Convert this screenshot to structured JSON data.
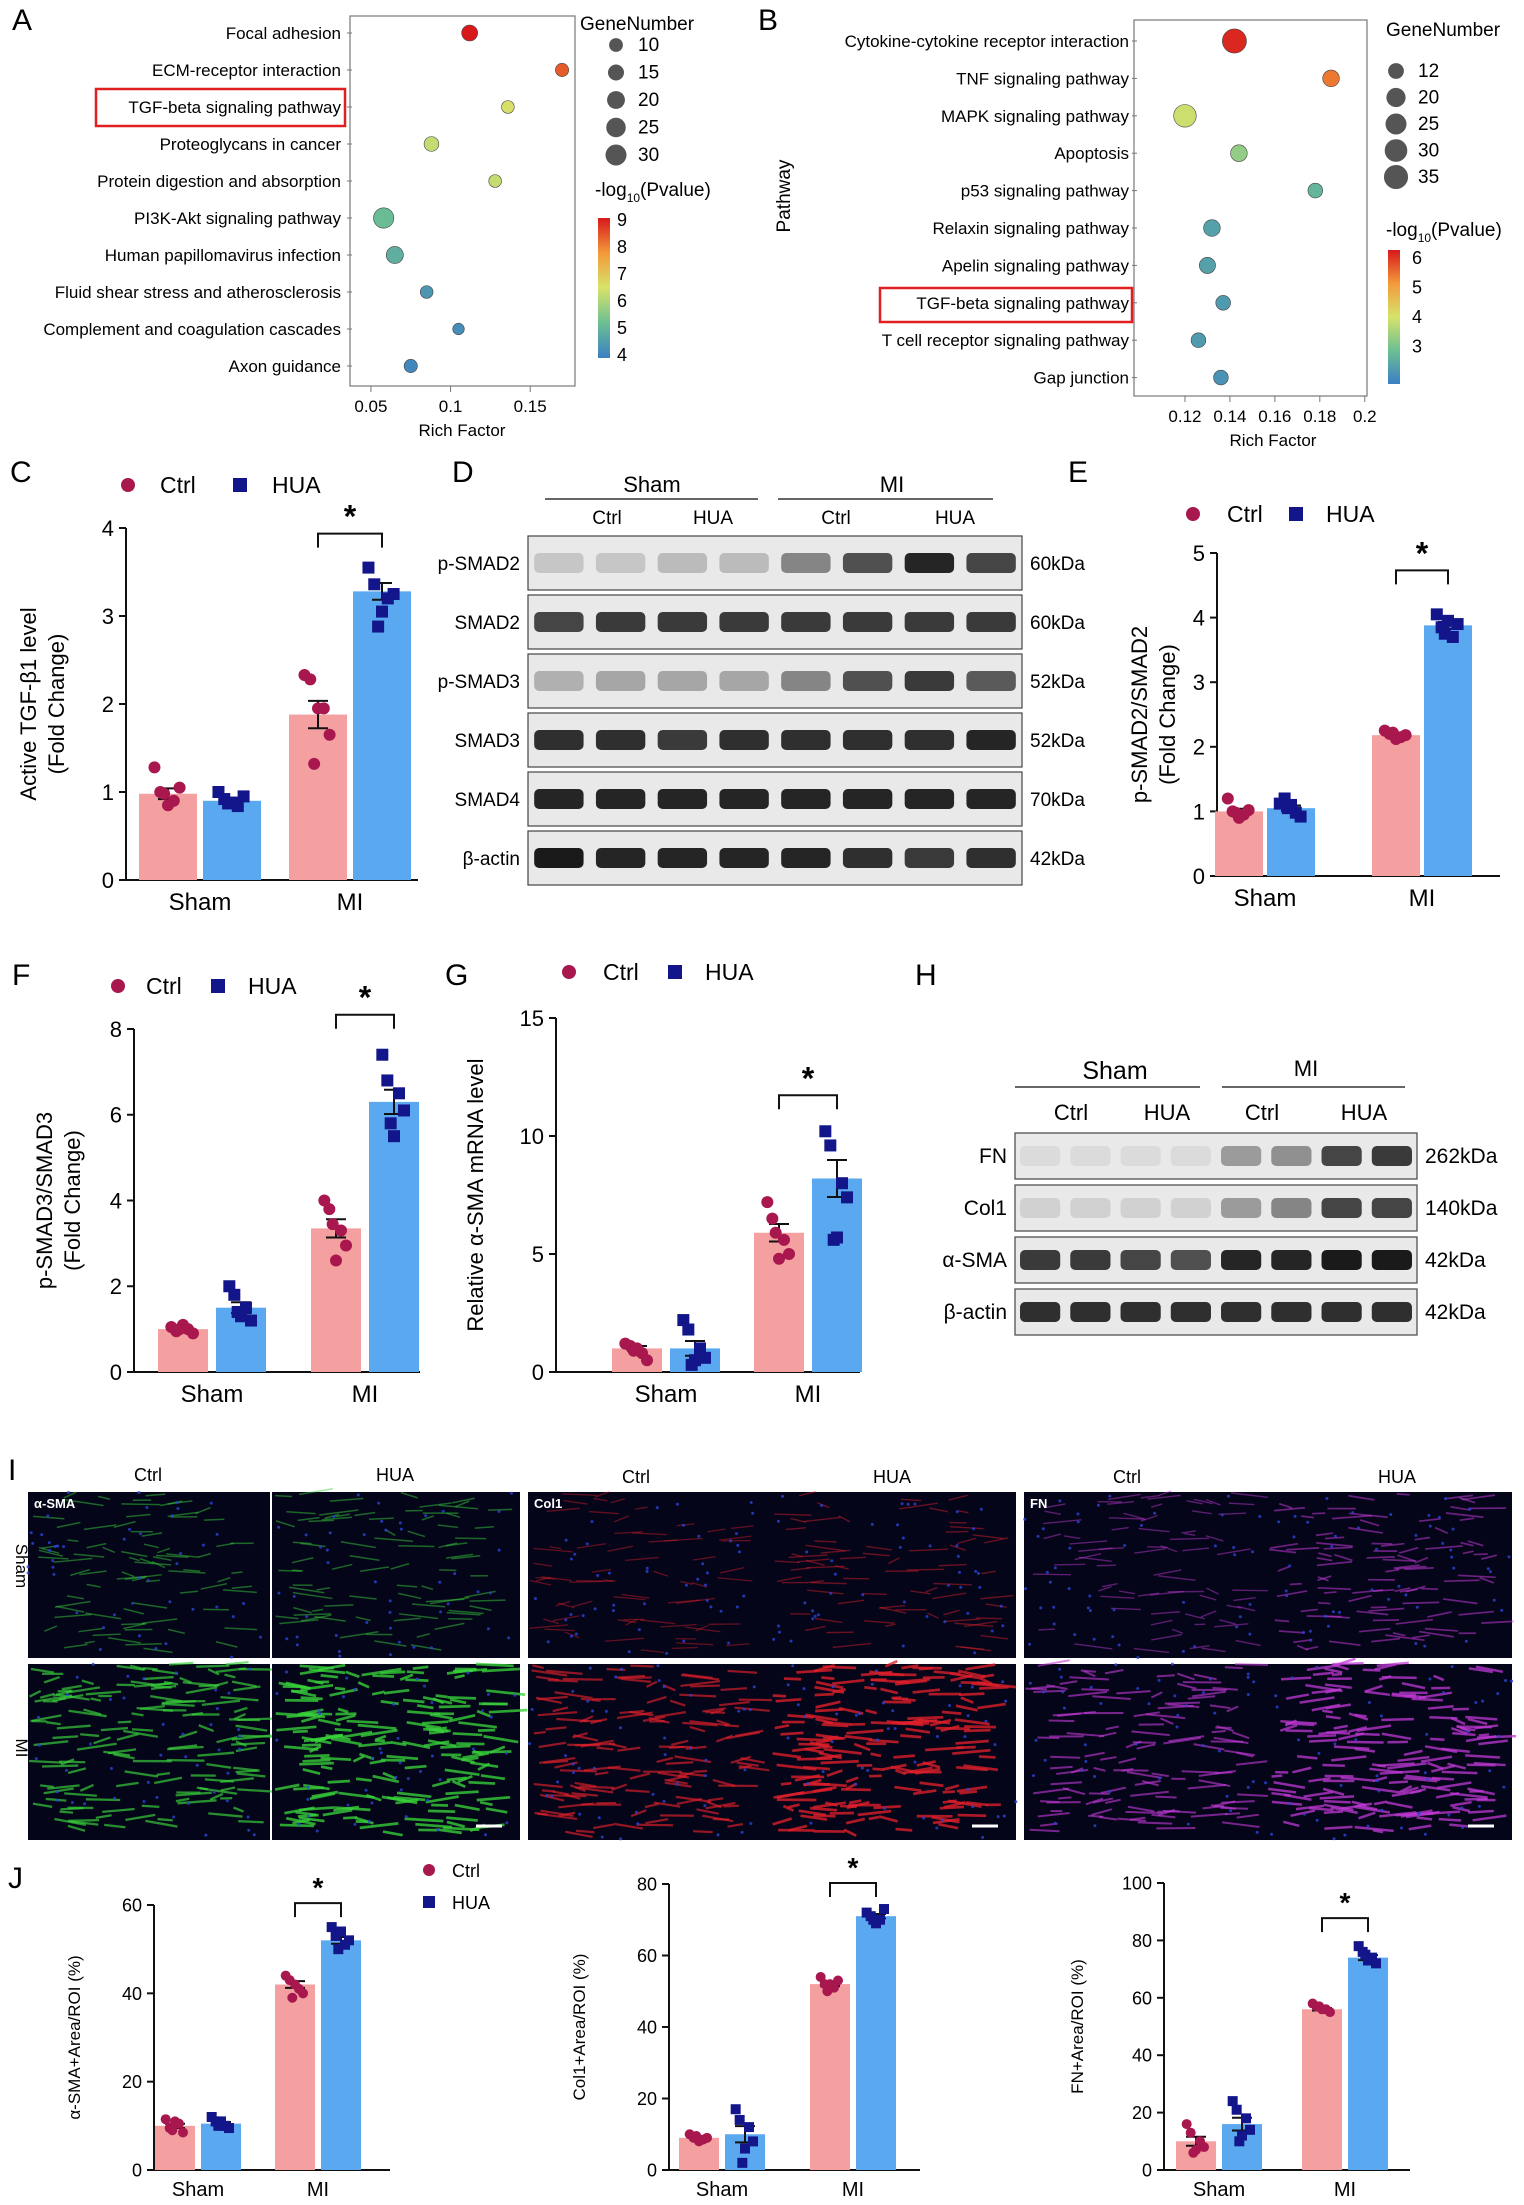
{
  "panel_letters": {
    "A": "A",
    "B": "B",
    "C": "C",
    "D": "D",
    "E": "E",
    "F": "F",
    "G": "G",
    "H": "H",
    "I": "I",
    "J": "J"
  },
  "colors": {
    "ctrl": "#f4a0a0",
    "hua": "#5aa9f0",
    "ctrl_dot": "#a8174e",
    "hua_dot": "#12168a"
  },
  "groups": {
    "ctrl": "Ctrl",
    "hua": "HUA"
  },
  "x_categories": [
    "Sham",
    "MI"
  ],
  "chart_data": [
    {
      "id": "A",
      "type": "scatter",
      "pathways": [
        "Focal adhesion",
        "ECM-receptor interaction",
        "TGF-beta signaling pathway",
        "Proteoglycans in cancer",
        "Protein digestion and absorption",
        "PI3K-Akt signaling pathway",
        "Human papillomavirus infection",
        "Fluid shear stress and atherosclerosis",
        "Complement and coagulation cascades",
        "Axon guidance"
      ],
      "rich_factor": [
        0.112,
        0.17,
        0.136,
        0.088,
        0.128,
        0.058,
        0.065,
        0.085,
        0.105,
        0.075
      ],
      "gene_number": [
        15,
        9,
        8,
        12,
        8,
        28,
        18,
        8,
        6,
        9
      ],
      "neg_log10_p": [
        9.0,
        8.3,
        6.3,
        6.0,
        6.0,
        4.8,
        4.5,
        4.0,
        3.8,
        3.7
      ],
      "xlabel": "Rich Factor",
      "xticks": [
        "0.05",
        "0.1",
        "0.15"
      ],
      "xlim": [
        0.04,
        0.175
      ],
      "highlight": "TGF-beta signaling pathway",
      "size_legend_title": "GeneNumber",
      "size_legend": [
        "10",
        "15",
        "20",
        "25",
        "30"
      ],
      "color_legend_title": "-log",
      "color_legend_sub": "10",
      "color_legend_tail": "(Pvalue)",
      "color_legend": [
        "9",
        "8",
        "7",
        "6",
        "5",
        "4"
      ]
    },
    {
      "id": "B",
      "type": "scatter",
      "pathways": [
        "Cytokine-cytokine receptor interaction",
        "TNF signaling pathway",
        "MAPK signaling pathway",
        "Apoptosis",
        "p53 signaling pathway",
        "Relaxin signaling pathway",
        "Apelin signaling pathway",
        "TGF-beta signaling pathway",
        "T cell receptor signaling pathway",
        "Gap junction"
      ],
      "rich_factor": [
        0.142,
        0.185,
        0.12,
        0.144,
        0.178,
        0.132,
        0.13,
        0.137,
        0.126,
        0.136
      ],
      "gene_number": [
        35,
        14,
        30,
        14,
        10,
        14,
        13,
        10,
        10,
        10
      ],
      "neg_log10_p": [
        6.2,
        5.6,
        4.3,
        3.8,
        3.3,
        3.0,
        3.0,
        2.9,
        2.9,
        2.8
      ],
      "xlabel": "Rich Factor",
      "ylabel": "Pathway",
      "xticks": [
        "0.12",
        "0.14",
        "0.16",
        "0.18",
        "0.2"
      ],
      "xlim": [
        0.1,
        0.205
      ],
      "highlight": "TGF-beta signaling pathway",
      "size_legend_title": "GeneNumber",
      "size_legend": [
        "12",
        "20",
        "25",
        "30",
        "35"
      ],
      "color_legend_title": "-log",
      "color_legend_sub": "10",
      "color_legend_tail": "(Pvalue)",
      "color_legend": [
        "6",
        "5",
        "4",
        "3"
      ]
    },
    {
      "id": "C",
      "type": "bar",
      "categories": [
        "Sham",
        "MI"
      ],
      "series": [
        {
          "name": "Ctrl",
          "values": [
            0.98,
            1.88
          ],
          "points": [
            [
              1.28,
              1.0,
              0.9,
              1.05,
              0.85,
              0.98
            ],
            [
              2.33,
              2.28,
              1.95,
              1.65,
              1.95,
              1.32
            ]
          ]
        },
        {
          "name": "HUA",
          "values": [
            0.9,
            3.28
          ],
          "points": [
            [
              1.0,
              0.92,
              0.84,
              0.95,
              0.88,
              0.87
            ],
            [
              3.55,
              3.36,
              3.2,
              3.25,
              3.05,
              2.88
            ]
          ]
        }
      ],
      "ylabel_lines": [
        "Active TGF-β1 level",
        "(Fold Change)"
      ],
      "ylim": [
        0,
        4
      ],
      "yticks": [
        "0",
        "1",
        "2",
        "3",
        "4"
      ],
      "sig": "*"
    },
    {
      "id": "E",
      "type": "bar",
      "categories": [
        "Sham",
        "MI"
      ],
      "series": [
        {
          "name": "Ctrl",
          "values": [
            1.0,
            2.18
          ],
          "points": [
            [
              1.2,
              1.0,
              0.95,
              1.02,
              0.9,
              0.98
            ],
            [
              2.25,
              2.2,
              2.15,
              2.18,
              2.12,
              2.22
            ]
          ]
        },
        {
          "name": "HUA",
          "values": [
            1.05,
            3.88
          ],
          "points": [
            [
              1.12,
              1.2,
              0.98,
              0.92,
              1.1,
              1.05
            ],
            [
              4.05,
              3.85,
              3.7,
              3.9,
              3.95,
              3.75
            ]
          ]
        }
      ],
      "ylabel_lines": [
        "p-SMAD2/SMAD2",
        "(Fold Change)"
      ],
      "ylim": [
        0,
        5
      ],
      "yticks": [
        "0",
        "1",
        "2",
        "3",
        "4",
        "5"
      ],
      "sig": "*"
    },
    {
      "id": "F",
      "type": "bar",
      "categories": [
        "Sham",
        "MI"
      ],
      "series": [
        {
          "name": "Ctrl",
          "values": [
            1.0,
            3.35
          ],
          "points": [
            [
              1.05,
              0.95,
              1.0,
              0.9,
              1.1,
              1.0
            ],
            [
              4.0,
              3.8,
              3.3,
              2.95,
              2.6,
              3.45
            ]
          ]
        },
        {
          "name": "HUA",
          "values": [
            1.5,
            6.3
          ],
          "points": [
            [
              2.0,
              1.8,
              1.5,
              1.2,
              1.3,
              1.4
            ],
            [
              7.4,
              6.8,
              6.5,
              6.1,
              5.5,
              5.8
            ]
          ]
        }
      ],
      "ylabel_lines": [
        "p-SMAD3/SMAD3",
        "(Fold Change)"
      ],
      "ylim": [
        0,
        8
      ],
      "yticks": [
        "0",
        "2",
        "4",
        "6",
        "8"
      ],
      "sig": "*"
    },
    {
      "id": "G",
      "type": "bar",
      "categories": [
        "Sham",
        "MI"
      ],
      "series": [
        {
          "name": "Ctrl",
          "values": [
            1.0,
            5.9
          ],
          "points": [
            [
              1.2,
              1.1,
              0.8,
              0.5,
              1.0,
              0.9
            ],
            [
              7.2,
              6.5,
              5.6,
              5.0,
              4.8,
              5.9
            ]
          ]
        },
        {
          "name": "HUA",
          "values": [
            1.0,
            8.2
          ],
          "points": [
            [
              2.2,
              1.8,
              1.0,
              0.6,
              0.5,
              0.3
            ],
            [
              10.2,
              9.6,
              8.0,
              7.4,
              5.7,
              5.6
            ]
          ]
        }
      ],
      "ylabel_lines": [
        "Relative α-SMA mRNA level"
      ],
      "ylim": [
        0,
        15
      ],
      "yticks": [
        "0",
        "5",
        "10",
        "15"
      ],
      "sig": "*"
    },
    {
      "id": "J1",
      "type": "bar",
      "categories": [
        "Sham",
        "MI"
      ],
      "series": [
        {
          "name": "Ctrl",
          "values": [
            10,
            42
          ],
          "points": [
            [
              11.5,
              9.5,
              10.5,
              8.5,
              11,
              9
            ],
            [
              44,
              43,
              41,
              40,
              42,
              39
            ]
          ]
        },
        {
          "name": "HUA",
          "values": [
            10.5,
            52
          ],
          "points": [
            [
              12,
              11,
              10,
              9.5,
              11,
              10
            ],
            [
              55,
              53,
              51,
              52,
              54,
              50
            ]
          ]
        }
      ],
      "ylabel": "α-SMA+Area/ROI (%)",
      "ylim": [
        0,
        60
      ],
      "yticks": [
        "0",
        "20",
        "40",
        "60"
      ],
      "sig": "*"
    },
    {
      "id": "J2",
      "type": "bar",
      "categories": [
        "Sham",
        "MI"
      ],
      "series": [
        {
          "name": "Ctrl",
          "values": [
            9,
            52
          ],
          "points": [
            [
              10,
              9,
              8.5,
              9,
              8,
              9.5
            ],
            [
              54,
              52,
              51,
              53,
              52,
              50
            ]
          ]
        },
        {
          "name": "HUA",
          "values": [
            10,
            71
          ],
          "points": [
            [
              17,
              14,
              12,
              8,
              6,
              2
            ],
            [
              72,
              71,
              70,
              73,
              69,
              70
            ]
          ]
        }
      ],
      "ylabel": "Col1+Area/ROI (%)",
      "ylim": [
        0,
        80
      ],
      "yticks": [
        "0",
        "20",
        "40",
        "60",
        "80"
      ],
      "sig": "*"
    },
    {
      "id": "J3",
      "type": "bar",
      "categories": [
        "Sham",
        "MI"
      ],
      "series": [
        {
          "name": "Ctrl",
          "values": [
            10,
            56
          ],
          "points": [
            [
              16,
              13,
              10,
              8,
              7,
              6
            ],
            [
              58,
              57,
              56,
              55,
              56,
              57
            ]
          ]
        },
        {
          "name": "HUA",
          "values": [
            16,
            74
          ],
          "points": [
            [
              24,
              21,
              18,
              14,
              12,
              10
            ],
            [
              78,
              76,
              74,
              72,
              73,
              75
            ]
          ]
        }
      ],
      "ylabel": "FN+Area/ROI (%)",
      "ylim": [
        0,
        100
      ],
      "yticks": [
        "0",
        "20",
        "40",
        "60",
        "80",
        "100"
      ],
      "sig": "*"
    }
  ],
  "blots": {
    "D": {
      "group_sham": "Sham",
      "group_mi": "MI",
      "lane_labels": [
        "Ctrl",
        "HUA",
        "Ctrl",
        "HUA"
      ],
      "rows": [
        {
          "protein": "p-SMAD2",
          "size": "60kDa",
          "intensity": [
            0.15,
            0.15,
            0.2,
            0.2,
            0.45,
            0.7,
            0.9,
            0.75
          ]
        },
        {
          "protein": "SMAD2",
          "size": "60kDa",
          "intensity": [
            0.75,
            0.8,
            0.8,
            0.8,
            0.8,
            0.8,
            0.8,
            0.8
          ]
        },
        {
          "protein": "p-SMAD3",
          "size": "52kDa",
          "intensity": [
            0.25,
            0.3,
            0.3,
            0.3,
            0.45,
            0.7,
            0.8,
            0.65
          ]
        },
        {
          "protein": "SMAD3",
          "size": "52kDa",
          "intensity": [
            0.85,
            0.85,
            0.8,
            0.85,
            0.85,
            0.85,
            0.85,
            0.9
          ]
        },
        {
          "protein": "SMAD4",
          "size": "70kDa",
          "intensity": [
            0.9,
            0.9,
            0.9,
            0.9,
            0.9,
            0.9,
            0.9,
            0.9
          ]
        },
        {
          "protein": "β-actin",
          "size": "42kDa",
          "intensity": [
            0.95,
            0.9,
            0.9,
            0.9,
            0.9,
            0.85,
            0.8,
            0.85
          ]
        }
      ]
    },
    "H": {
      "group_sham": "Sham",
      "group_mi": "MI",
      "lane_labels": [
        "Ctrl",
        "HUA",
        "Ctrl",
        "HUA"
      ],
      "rows": [
        {
          "protein": "FN",
          "size": "262kDa",
          "intensity": [
            0.05,
            0.05,
            0.05,
            0.05,
            0.35,
            0.4,
            0.75,
            0.8
          ]
        },
        {
          "protein": "Col1",
          "size": "140kDa",
          "intensity": [
            0.1,
            0.1,
            0.1,
            0.1,
            0.35,
            0.45,
            0.75,
            0.75
          ]
        },
        {
          "protein": "α-SMA",
          "size": "42kDa",
          "intensity": [
            0.8,
            0.8,
            0.75,
            0.7,
            0.9,
            0.9,
            0.95,
            0.95
          ]
        },
        {
          "protein": "β-actin",
          "size": "42kDa",
          "intensity": [
            0.85,
            0.85,
            0.85,
            0.85,
            0.85,
            0.85,
            0.85,
            0.85
          ]
        }
      ]
    }
  },
  "micrographs": {
    "col_labels": [
      "Ctrl",
      "HUA"
    ],
    "row_labels": [
      "Sham",
      "MI"
    ],
    "stains": [
      {
        "label": "α-SMA",
        "color": "#38d23a",
        "density": [
          0.25,
          0.25,
          0.65,
          0.85
        ]
      },
      {
        "label": "Col1",
        "color": "#e0202a",
        "density": [
          0.15,
          0.2,
          0.6,
          0.85
        ]
      },
      {
        "label": "FN",
        "color": "#c43ad8",
        "density": [
          0.2,
          0.35,
          0.5,
          0.75
        ]
      }
    ]
  }
}
